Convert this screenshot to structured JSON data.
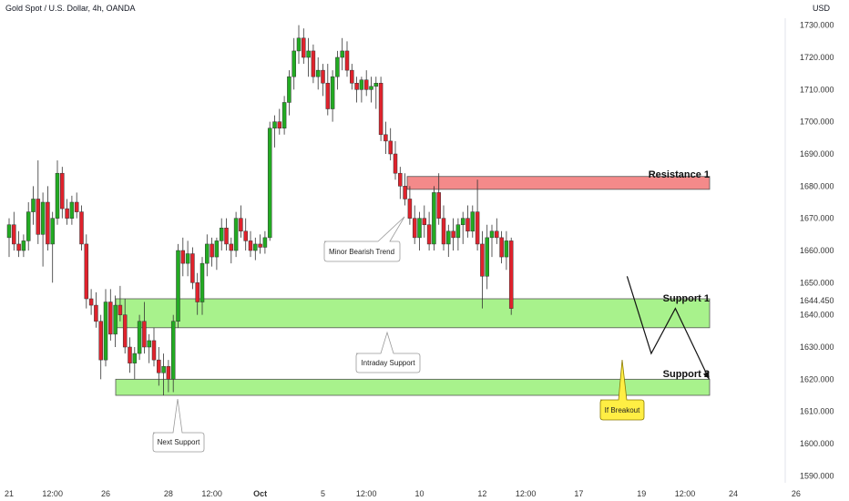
{
  "header": {
    "title": "Gold Spot / U.S. Dollar, 4h, OANDA",
    "currency": "USD"
  },
  "chart_data": {
    "type": "candlestick",
    "title": "Gold Spot / U.S. Dollar, 4h, OANDA",
    "y_unit": "USD",
    "ylim": [
      1585,
      1735
    ],
    "y_ticks": [
      1590,
      1600,
      1610,
      1620,
      1630,
      1640,
      1650,
      1660,
      1670,
      1680,
      1690,
      1700,
      1710,
      1720,
      1730
    ],
    "y_tick_labels": [
      "1590.000",
      "1600.000",
      "1610.000",
      "1620.000",
      "1630.000",
      "1640.000",
      "1650.000",
      "1660.000",
      "1670.000",
      "1680.000",
      "1690.000",
      "1700.000",
      "1710.000",
      "1720.000",
      "1730.000"
    ],
    "current_price": 1644.45,
    "current_price_label": "1644.450",
    "x_ticks": [
      {
        "label": "21",
        "index": 0
      },
      {
        "label": "12:00",
        "index": 9
      },
      {
        "label": "26",
        "index": 20
      },
      {
        "label": "28",
        "index": 33
      },
      {
        "label": "12:00",
        "index": 42
      },
      {
        "label": "Oct",
        "index": 52
      },
      {
        "label": "5",
        "index": 65
      },
      {
        "label": "12:00",
        "index": 74
      },
      {
        "label": "10",
        "index": 85
      },
      {
        "label": "12",
        "index": 98
      },
      {
        "label": "12:00",
        "index": 107
      },
      {
        "label": "17",
        "index": 118
      },
      {
        "label": "19",
        "index": 131
      },
      {
        "label": "12:00",
        "index": 140
      },
      {
        "label": "24",
        "index": 150
      },
      {
        "label": "26",
        "index": 163
      }
    ],
    "candles": [
      [
        1664,
        1670,
        1658,
        1668
      ],
      [
        1668,
        1672,
        1660,
        1662
      ],
      [
        1662,
        1666,
        1658,
        1660
      ],
      [
        1660,
        1665,
        1658,
        1663
      ],
      [
        1663,
        1675,
        1660,
        1672
      ],
      [
        1672,
        1680,
        1668,
        1676
      ],
      [
        1676,
        1688,
        1662,
        1665
      ],
      [
        1665,
        1678,
        1655,
        1675
      ],
      [
        1675,
        1680,
        1660,
        1662
      ],
      [
        1662,
        1672,
        1650,
        1670
      ],
      [
        1670,
        1688,
        1668,
        1684
      ],
      [
        1684,
        1686,
        1670,
        1673
      ],
      [
        1673,
        1676,
        1668,
        1670
      ],
      [
        1670,
        1677,
        1668,
        1675
      ],
      [
        1675,
        1678,
        1670,
        1672
      ],
      [
        1672,
        1674,
        1660,
        1662
      ],
      [
        1662,
        1665,
        1642,
        1645
      ],
      [
        1645,
        1648,
        1640,
        1643
      ],
      [
        1643,
        1647,
        1636,
        1638
      ],
      [
        1638,
        1640,
        1620,
        1626
      ],
      [
        1626,
        1648,
        1624,
        1644
      ],
      [
        1644,
        1648,
        1632,
        1634
      ],
      [
        1634,
        1646,
        1630,
        1643
      ],
      [
        1643,
        1649,
        1638,
        1640
      ],
      [
        1640,
        1645,
        1628,
        1630
      ],
      [
        1630,
        1633,
        1622,
        1625
      ],
      [
        1625,
        1630,
        1620,
        1628
      ],
      [
        1628,
        1640,
        1626,
        1638
      ],
      [
        1638,
        1644,
        1628,
        1630
      ],
      [
        1630,
        1634,
        1625,
        1632
      ],
      [
        1632,
        1636,
        1624,
        1626
      ],
      [
        1626,
        1630,
        1618,
        1622
      ],
      [
        1622,
        1628,
        1615,
        1624
      ],
      [
        1624,
        1626,
        1616,
        1620
      ],
      [
        1620,
        1640,
        1616,
        1638
      ],
      [
        1638,
        1662,
        1636,
        1660
      ],
      [
        1660,
        1664,
        1652,
        1656
      ],
      [
        1656,
        1663,
        1652,
        1659
      ],
      [
        1659,
        1661,
        1648,
        1650
      ],
      [
        1650,
        1653,
        1640,
        1644
      ],
      [
        1644,
        1658,
        1640,
        1656
      ],
      [
        1656,
        1665,
        1652,
        1662
      ],
      [
        1662,
        1664,
        1655,
        1658
      ],
      [
        1658,
        1664,
        1654,
        1663
      ],
      [
        1663,
        1670,
        1660,
        1667
      ],
      [
        1667,
        1670,
        1660,
        1662
      ],
      [
        1662,
        1664,
        1656,
        1660
      ],
      [
        1660,
        1672,
        1658,
        1670
      ],
      [
        1670,
        1674,
        1664,
        1666
      ],
      [
        1666,
        1670,
        1660,
        1663
      ],
      [
        1663,
        1666,
        1658,
        1660
      ],
      [
        1660,
        1664,
        1657,
        1662
      ],
      [
        1662,
        1665,
        1659,
        1661
      ],
      [
        1661,
        1666,
        1659,
        1664
      ],
      [
        1664,
        1700,
        1663,
        1698
      ],
      [
        1698,
        1702,
        1692,
        1700
      ],
      [
        1700,
        1704,
        1696,
        1698
      ],
      [
        1698,
        1708,
        1696,
        1706
      ],
      [
        1706,
        1716,
        1702,
        1714
      ],
      [
        1714,
        1726,
        1710,
        1722
      ],
      [
        1722,
        1730,
        1718,
        1726
      ],
      [
        1726,
        1729,
        1718,
        1720
      ],
      [
        1720,
        1726,
        1714,
        1722
      ],
      [
        1722,
        1724,
        1712,
        1714
      ],
      [
        1714,
        1720,
        1710,
        1716
      ],
      [
        1716,
        1718,
        1708,
        1712
      ],
      [
        1712,
        1718,
        1702,
        1704
      ],
      [
        1704,
        1716,
        1700,
        1714
      ],
      [
        1714,
        1722,
        1710,
        1720
      ],
      [
        1720,
        1726,
        1716,
        1722
      ],
      [
        1722,
        1725,
        1714,
        1716
      ],
      [
        1716,
        1718,
        1710,
        1712
      ],
      [
        1712,
        1714,
        1706,
        1710
      ],
      [
        1710,
        1714,
        1706,
        1713
      ],
      [
        1713,
        1716,
        1708,
        1710
      ],
      [
        1710,
        1714,
        1706,
        1711
      ],
      [
        1711,
        1714,
        1704,
        1712
      ],
      [
        1712,
        1714,
        1694,
        1696
      ],
      [
        1696,
        1700,
        1690,
        1694
      ],
      [
        1694,
        1698,
        1688,
        1690
      ],
      [
        1690,
        1694,
        1682,
        1684
      ],
      [
        1684,
        1686,
        1676,
        1680
      ],
      [
        1680,
        1684,
        1674,
        1676
      ],
      [
        1676,
        1680,
        1668,
        1670
      ],
      [
        1670,
        1674,
        1662,
        1664
      ],
      [
        1664,
        1672,
        1660,
        1670
      ],
      [
        1670,
        1674,
        1664,
        1668
      ],
      [
        1668,
        1672,
        1660,
        1662
      ],
      [
        1662,
        1680,
        1660,
        1678
      ],
      [
        1678,
        1684,
        1668,
        1670
      ],
      [
        1670,
        1674,
        1660,
        1662
      ],
      [
        1662,
        1668,
        1658,
        1666
      ],
      [
        1666,
        1670,
        1660,
        1664
      ],
      [
        1664,
        1670,
        1660,
        1668
      ],
      [
        1668,
        1672,
        1662,
        1670
      ],
      [
        1670,
        1674,
        1664,
        1666
      ],
      [
        1666,
        1674,
        1664,
        1672
      ],
      [
        1672,
        1682,
        1660,
        1662
      ],
      [
        1662,
        1666,
        1642,
        1652
      ],
      [
        1652,
        1668,
        1648,
        1664
      ],
      [
        1664,
        1668,
        1658,
        1666
      ],
      [
        1666,
        1670,
        1662,
        1664
      ],
      [
        1664,
        1666,
        1656,
        1658
      ],
      [
        1658,
        1666,
        1654,
        1663
      ],
      [
        1663,
        1664,
        1640,
        1642
      ]
    ],
    "annotations": [
      {
        "text": "Resistance 1",
        "type": "zone",
        "y_low": 1679,
        "y_high": 1683
      },
      {
        "text": "Support 1",
        "type": "zone",
        "y_low": 1636,
        "y_high": 1645
      },
      {
        "text": "Support 2",
        "type": "zone",
        "y_low": 1615,
        "y_high": 1620
      },
      {
        "text": "Minor Bearish Trend",
        "type": "callout"
      },
      {
        "text": "Intraday Support",
        "type": "callout"
      },
      {
        "text": "Next Support",
        "type": "callout"
      },
      {
        "text": "If Breakout",
        "type": "callout"
      }
    ],
    "projection_path": [
      {
        "index": 128,
        "price": 1652
      },
      {
        "index": 133,
        "price": 1628
      },
      {
        "index": 138,
        "price": 1642
      },
      {
        "index": 145,
        "price": 1620
      }
    ],
    "colors": {
      "up": "#22ab22",
      "down": "#e0222c",
      "resistance_fill": "#f48a8a",
      "support_fill": "#a8f28c",
      "callout_yellow": "#ffee44"
    }
  }
}
